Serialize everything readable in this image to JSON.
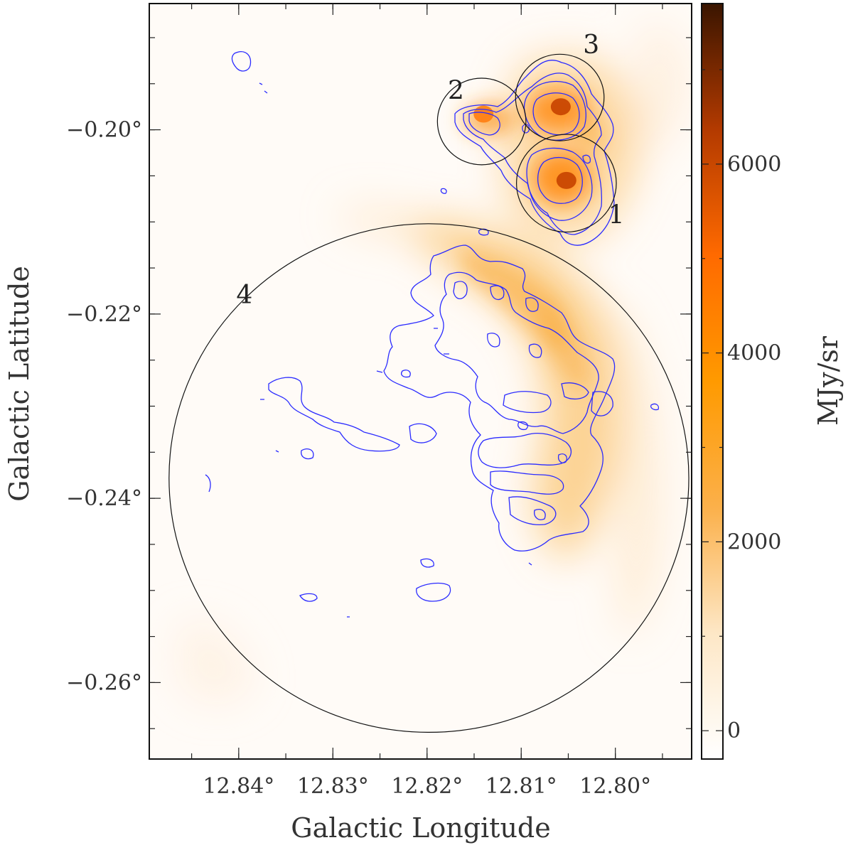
{
  "chart_data": {
    "type": "heatmap",
    "title": "",
    "xlabel": "Galactic Longitude",
    "ylabel": "Galactic Latitude",
    "colorbar_label": "MJy/sr",
    "x_ticks": [
      {
        "value": 12.84,
        "label": "12.84°"
      },
      {
        "value": 12.83,
        "label": "12.83°"
      },
      {
        "value": 12.82,
        "label": "12.82°"
      },
      {
        "value": 12.81,
        "label": "12.81°"
      },
      {
        "value": 12.8,
        "label": "12.80°"
      }
    ],
    "y_ticks": [
      {
        "value": -0.2,
        "label": "−0.20°"
      },
      {
        "value": -0.22,
        "label": "−0.22°"
      },
      {
        "value": -0.24,
        "label": "−0.24°"
      },
      {
        "value": -0.26,
        "label": "−0.26°"
      }
    ],
    "colorbar_ticks": [
      {
        "value": 0,
        "label": "0"
      },
      {
        "value": 2000,
        "label": "2000"
      },
      {
        "value": 4000,
        "label": "4000"
      },
      {
        "value": 6000,
        "label": "6000"
      }
    ],
    "xlim": [
      12.8495,
      12.7919
    ],
    "ylim": [
      -0.2683,
      -0.1863
    ],
    "color_range": [
      -300,
      7700
    ],
    "colormap": [
      "#ffffff",
      "#fde7c6",
      "#fbb04a",
      "#ff9a00",
      "#ff6a00",
      "#b33a00",
      "#3a1500"
    ],
    "regions": [
      {
        "label": "1",
        "l": 12.8052,
        "b": -0.2058,
        "radius": 0.0053
      },
      {
        "label": "2",
        "l": 12.8142,
        "b": -0.1991,
        "radius": 0.0047
      },
      {
        "label": "3",
        "l": 12.8059,
        "b": -0.1965,
        "radius": 0.0047
      },
      {
        "label": "4",
        "l": 12.8198,
        "b": -0.2378,
        "radius": 0.0276
      }
    ],
    "emission_peaks": [
      {
        "l": 12.8052,
        "b": -0.2055,
        "value": 6200
      },
      {
        "l": 12.8058,
        "b": -0.1975,
        "value": 6000
      },
      {
        "l": 12.814,
        "b": -0.1983,
        "value": 4000
      }
    ]
  }
}
